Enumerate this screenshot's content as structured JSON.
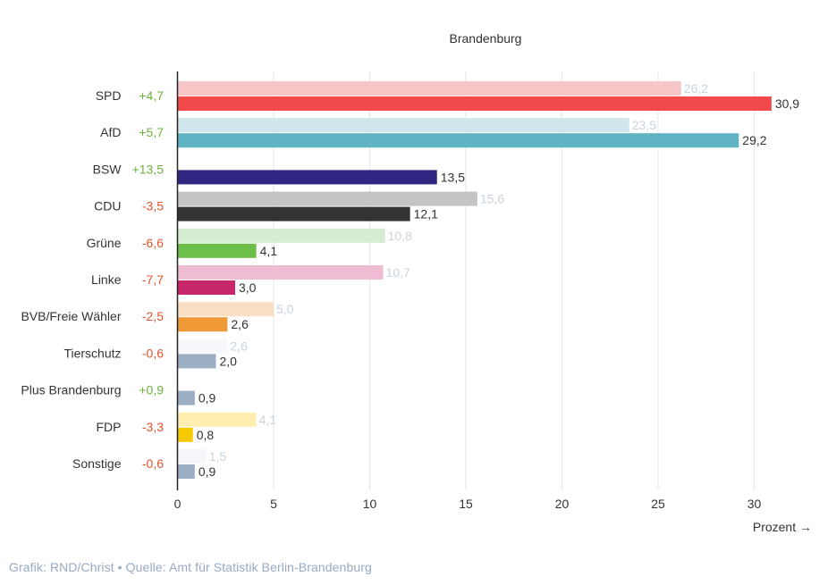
{
  "chart_data": {
    "type": "bar",
    "orientation": "horizontal",
    "title": "Brandenburg",
    "xlabel": "Prozent →",
    "xlim": [
      0,
      30
    ],
    "xticks": [
      0,
      5,
      10,
      15,
      20,
      25,
      30
    ],
    "grid": true,
    "categories": [
      "SPD",
      "AfD",
      "BSW",
      "CDU",
      "Grüne",
      "Linke",
      "BVB/Freie Wähler",
      "Tierschutz",
      "Plus Brandenburg",
      "FDP",
      "Sonstige"
    ],
    "changes": [
      "+4,7",
      "+5,7",
      "+13,5",
      "-3,5",
      "-6,6",
      "-7,7",
      "-2,5",
      "-0,6",
      "+0,9",
      "-3,3",
      "-0,6"
    ],
    "series": [
      {
        "name": "previous",
        "values": [
          26.2,
          23.5,
          null,
          15.6,
          10.8,
          10.7,
          5.0,
          2.6,
          0.0,
          4.1,
          1.5
        ],
        "labels": [
          "26,2",
          "23,5",
          "",
          "15,6",
          "10,8",
          "10,7",
          "5,0",
          "2,6",
          "",
          "4,1",
          "1,5"
        ],
        "colors": [
          "#f6c6c6",
          "#cfe6ea",
          "#d8d6ea",
          "#c4c4c4",
          "#d5ecd1",
          "#efbdd3",
          "#f8dfc1",
          "#f5f7fa",
          "#f3f5f8",
          "#fff0b2",
          "#f5f7fa"
        ]
      },
      {
        "name": "current",
        "values": [
          30.9,
          29.2,
          13.5,
          12.1,
          4.1,
          3.0,
          2.6,
          2.0,
          0.9,
          0.8,
          0.9
        ],
        "labels": [
          "30,9",
          "29,2",
          "13,5",
          "12,1",
          "4,1",
          "3,0",
          "2,6",
          "2,0",
          "0,9",
          "0,8",
          "0,9"
        ],
        "colors": [
          "#f24a4a",
          "#5fb3c2",
          "#312782",
          "#333333",
          "#6cc04a",
          "#c9276c",
          "#ef9a36",
          "#9baec3",
          "#9baec3",
          "#f5c800",
          "#9baec3"
        ]
      }
    ]
  },
  "footer": "Grafik: RND/Christ • Quelle: Amt für Statistik Berlin-Brandenburg",
  "colors": {
    "positive": "#6cb33e",
    "negative": "#e0552d",
    "text": "#333333",
    "prev_label": "#c9d3de",
    "grid": "#e6e6e6",
    "axis": "#222222"
  }
}
